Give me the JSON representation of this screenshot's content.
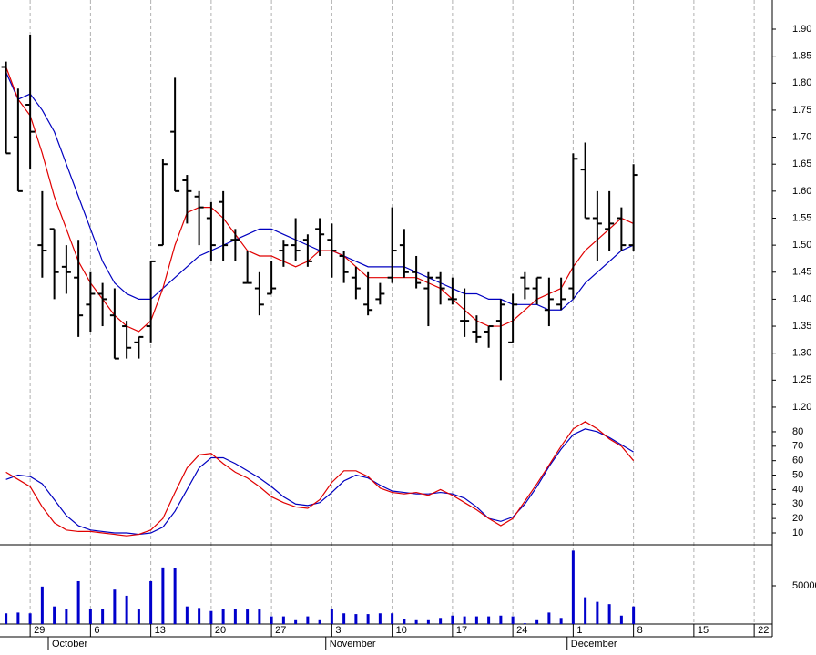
{
  "chart_data": {
    "categories": [
      null,
      null,
      "29",
      null,
      null,
      null,
      null,
      "6",
      null,
      null,
      null,
      null,
      "13",
      null,
      null,
      null,
      null,
      "20",
      null,
      null,
      null,
      null,
      "27",
      null,
      null,
      null,
      null,
      "3",
      null,
      null,
      null,
      null,
      "10",
      null,
      null,
      null,
      null,
      "17",
      null,
      null,
      null,
      null,
      "24",
      null,
      null,
      null,
      null,
      "1",
      null,
      null,
      null,
      null,
      "8",
      null,
      null,
      null,
      null,
      "15",
      null,
      null,
      null,
      null,
      "22",
      null
    ],
    "month_labels": [
      {
        "label": "October",
        "category": 4
      },
      {
        "label": "November",
        "category": 27
      },
      {
        "label": "December",
        "category": 47
      }
    ],
    "panels": [
      {
        "type": "ohlc",
        "color": "#000000",
        "open": [
          1.83,
          1.7,
          1.76,
          1.5,
          1.53,
          1.46,
          1.44,
          1.39,
          1.41,
          1.37,
          1.35,
          1.32,
          1.35,
          1.5,
          1.71,
          1.62,
          1.59,
          1.55,
          1.58,
          1.51,
          1.43,
          1.42,
          1.41,
          1.49,
          1.5,
          1.51,
          1.53,
          1.51,
          1.48,
          1.44,
          1.39,
          1.4,
          1.44,
          1.5,
          1.45,
          1.42,
          1.44,
          1.4,
          1.36,
          1.34,
          1.34,
          1.36,
          1.32,
          1.44,
          1.42,
          1.38,
          1.39,
          1.42,
          1.64,
          1.55,
          1.53,
          1.55,
          1.5,
          null,
          null,
          null,
          null,
          null,
          null,
          null,
          null,
          null,
          null,
          null
        ],
        "high": [
          1.84,
          1.79,
          1.89,
          1.6,
          1.53,
          1.5,
          1.51,
          1.45,
          1.43,
          1.42,
          1.36,
          1.33,
          1.47,
          1.66,
          1.81,
          1.63,
          1.6,
          1.58,
          1.6,
          1.53,
          1.49,
          1.45,
          1.47,
          1.51,
          1.55,
          1.52,
          1.55,
          1.54,
          1.49,
          1.46,
          1.45,
          1.43,
          1.57,
          1.53,
          1.48,
          1.45,
          1.45,
          1.44,
          1.42,
          1.37,
          1.35,
          1.4,
          1.41,
          1.45,
          1.44,
          1.44,
          1.44,
          1.67,
          1.69,
          1.6,
          1.6,
          1.57,
          1.65,
          null,
          null,
          null,
          null,
          null,
          null,
          null,
          null,
          null,
          null,
          null
        ],
        "low": [
          1.67,
          1.6,
          1.64,
          1.44,
          1.4,
          1.41,
          1.33,
          1.34,
          1.35,
          1.29,
          1.29,
          1.29,
          1.32,
          1.5,
          1.6,
          1.54,
          1.5,
          1.47,
          1.47,
          1.47,
          1.43,
          1.37,
          1.41,
          1.46,
          1.47,
          1.46,
          1.48,
          1.44,
          1.43,
          1.4,
          1.37,
          1.39,
          1.43,
          1.44,
          1.42,
          1.35,
          1.39,
          1.39,
          1.33,
          1.32,
          1.31,
          1.25,
          1.32,
          1.4,
          1.39,
          1.35,
          1.38,
          1.4,
          1.55,
          1.47,
          1.49,
          1.49,
          1.49,
          null,
          null,
          null,
          null,
          null,
          null,
          null,
          null,
          null,
          null,
          null
        ],
        "close": [
          1.67,
          1.6,
          1.71,
          1.49,
          1.45,
          1.45,
          1.37,
          1.41,
          1.4,
          1.29,
          1.31,
          1.33,
          1.47,
          1.65,
          1.6,
          1.6,
          1.57,
          1.5,
          1.5,
          1.51,
          1.43,
          1.39,
          1.42,
          1.5,
          1.49,
          1.47,
          1.52,
          1.49,
          1.45,
          1.42,
          1.38,
          1.41,
          1.49,
          1.45,
          1.43,
          1.44,
          1.42,
          1.4,
          1.36,
          1.33,
          1.35,
          1.39,
          1.39,
          1.42,
          1.44,
          1.4,
          1.4,
          1.66,
          1.55,
          1.54,
          1.54,
          1.5,
          1.63,
          null,
          null,
          null,
          null,
          null,
          null,
          null,
          null,
          null,
          null,
          null
        ],
        "lines": [
          {
            "color": "#0000c0",
            "values": [
              1.82,
              1.77,
              1.78,
              1.75,
              1.71,
              1.65,
              1.59,
              1.53,
              1.47,
              1.43,
              1.41,
              1.4,
              1.4,
              1.42,
              1.44,
              1.46,
              1.48,
              1.49,
              1.5,
              1.51,
              1.52,
              1.53,
              1.53,
              1.52,
              1.51,
              1.5,
              1.49,
              1.49,
              1.48,
              1.47,
              1.46,
              1.46,
              1.46,
              1.46,
              1.45,
              1.44,
              1.43,
              1.42,
              1.41,
              1.41,
              1.4,
              1.4,
              1.39,
              1.39,
              1.39,
              1.38,
              1.38,
              1.4,
              1.43,
              1.45,
              1.47,
              1.49,
              1.5,
              null,
              null,
              null,
              null,
              null,
              null,
              null,
              null,
              null,
              null,
              null
            ]
          },
          {
            "color": "#e00000",
            "values": [
              1.83,
              1.77,
              1.74,
              1.67,
              1.59,
              1.53,
              1.47,
              1.43,
              1.4,
              1.37,
              1.35,
              1.34,
              1.36,
              1.42,
              1.5,
              1.56,
              1.57,
              1.57,
              1.55,
              1.52,
              1.49,
              1.48,
              1.48,
              1.47,
              1.46,
              1.47,
              1.49,
              1.49,
              1.48,
              1.46,
              1.44,
              1.44,
              1.44,
              1.44,
              1.44,
              1.43,
              1.42,
              1.4,
              1.38,
              1.36,
              1.35,
              1.35,
              1.36,
              1.38,
              1.4,
              1.41,
              1.42,
              1.46,
              1.49,
              1.51,
              1.53,
              1.55,
              1.54,
              null,
              null,
              null,
              null,
              null,
              null,
              null,
              null,
              null,
              null,
              null
            ]
          }
        ],
        "ylim": [
          1.178,
          1.954
        ],
        "yticks": [
          {
            "value": 1.2,
            "label": "1.20"
          },
          1.25,
          {
            "value": 1.3,
            "label": "1.30"
          },
          1.35,
          {
            "value": 1.4,
            "label": "1.40"
          },
          1.45,
          {
            "value": 1.5,
            "label": "1.50"
          },
          1.55,
          {
            "value": 1.6,
            "label": "1.60"
          },
          1.65,
          {
            "value": 1.7,
            "label": "1.70"
          },
          1.75,
          {
            "value": 1.8,
            "label": "1.80"
          },
          1.85,
          {
            "value": 1.9,
            "label": "1.90"
          }
        ]
      },
      {
        "type": "line",
        "lines": [
          {
            "color": "#0000c0",
            "values": [
              47,
              50,
              49,
              44,
              33,
              22,
              15,
              12,
              11,
              10,
              10,
              9,
              10,
              14,
              25,
              40,
              55,
              62,
              62,
              58,
              53,
              48,
              42,
              35,
              30,
              29,
              31,
              38,
              46,
              50,
              48,
              43,
              39,
              38,
              37,
              37,
              38,
              37,
              34,
              28,
              20,
              18,
              21,
              30,
              42,
              56,
              68,
              78,
              82,
              80,
              76,
              71,
              66,
              null,
              null,
              null,
              null,
              null,
              null,
              null,
              null,
              null,
              null,
              null
            ]
          },
          {
            "color": "#e00000",
            "values": [
              52,
              47,
              42,
              28,
              17,
              12,
              11,
              11,
              10,
              9,
              8,
              9,
              12,
              20,
              38,
              55,
              64,
              65,
              58,
              52,
              48,
              42,
              35,
              31,
              28,
              27,
              33,
              45,
              53,
              53,
              49,
              41,
              38,
              37,
              38,
              36,
              40,
              36,
              31,
              26,
              20,
              15,
              20,
              32,
              44,
              57,
              70,
              82,
              87,
              82,
              75,
              70,
              60,
              null,
              null,
              null,
              null,
              null,
              null,
              null,
              null,
              null,
              null,
              null
            ]
          }
        ],
        "ylim": [
          1.8,
          88.8
        ],
        "yticks": [
          10,
          20,
          30,
          40,
          50,
          60,
          70,
          80
        ]
      },
      {
        "type": "bar",
        "color": "#0000cc",
        "values": [
          14000,
          15000,
          14000,
          49000,
          23000,
          20000,
          56000,
          20000,
          20000,
          45000,
          37000,
          19000,
          56000,
          74000,
          73000,
          23000,
          21000,
          17000,
          20000,
          20000,
          19000,
          19000,
          10000,
          10000,
          5000,
          10000,
          5000,
          20000,
          14000,
          13000,
          13000,
          14000,
          14000,
          6000,
          5000,
          5000,
          8000,
          11000,
          10000,
          10000,
          10000,
          11000,
          10000,
          1000,
          5000,
          15000,
          8000,
          96000,
          35000,
          29000,
          26000,
          11000,
          23000,
          null,
          null,
          null,
          null,
          null,
          null,
          null,
          null,
          null,
          null,
          null
        ],
        "ylim": [
          0,
          103600
        ],
        "yticks": [
          50000
        ]
      }
    ]
  }
}
